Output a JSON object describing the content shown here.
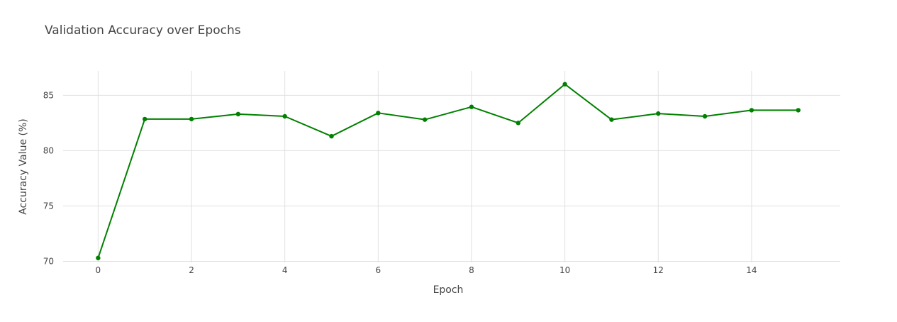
{
  "chart_data": {
    "type": "line",
    "title": "Validation Accuracy over Epochs",
    "xlabel": "Epoch",
    "ylabel": "Accuracy Value (%)",
    "xlim": [
      -0.75,
      15.9
    ],
    "ylim": [
      69.9,
      87.2
    ],
    "x_ticks": [
      0,
      2,
      4,
      6,
      8,
      10,
      12,
      14
    ],
    "y_ticks": [
      70,
      75,
      80,
      85
    ],
    "grid": true,
    "legend": "none",
    "series": [
      {
        "color": "#008000",
        "mode": "lines+markers",
        "x": [
          0,
          1,
          2,
          3,
          4,
          5,
          6,
          7,
          8,
          9,
          10,
          11,
          12,
          13,
          14,
          15
        ],
        "y": [
          70.3,
          82.85,
          82.85,
          83.3,
          83.1,
          81.3,
          83.4,
          82.8,
          83.95,
          82.5,
          86.0,
          82.8,
          83.35,
          83.1,
          83.65,
          83.65
        ]
      }
    ]
  }
}
